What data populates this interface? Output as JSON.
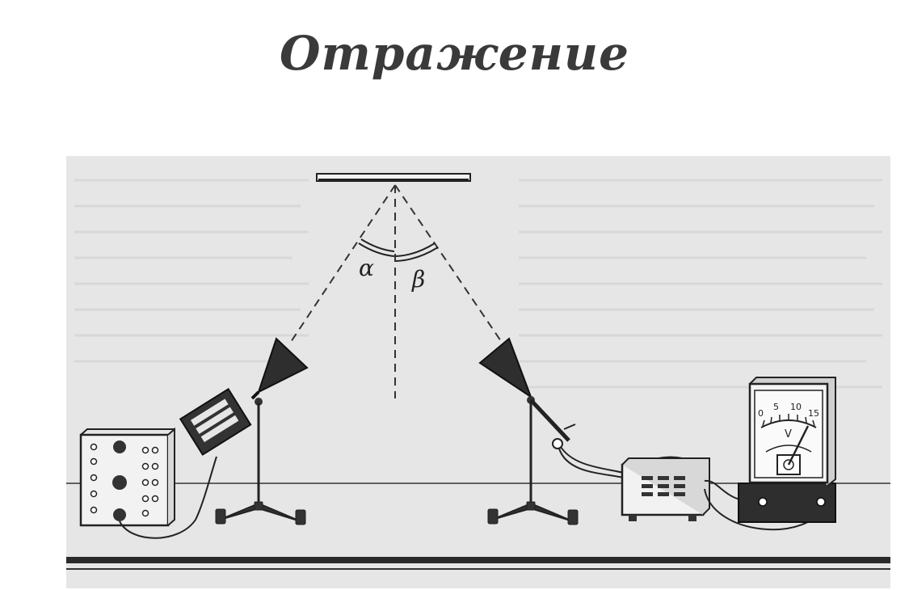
{
  "title": "Отражение",
  "diagram": {
    "angle_labels": {
      "incidence": "α",
      "reflection": "β"
    },
    "voltmeter": {
      "scale_ticks": [
        "0",
        "5",
        "10",
        "15"
      ],
      "unit": "V"
    }
  },
  "colors": {
    "ink": "#222222",
    "panel": "#e6e6e6",
    "title": "#3a3a3a"
  }
}
